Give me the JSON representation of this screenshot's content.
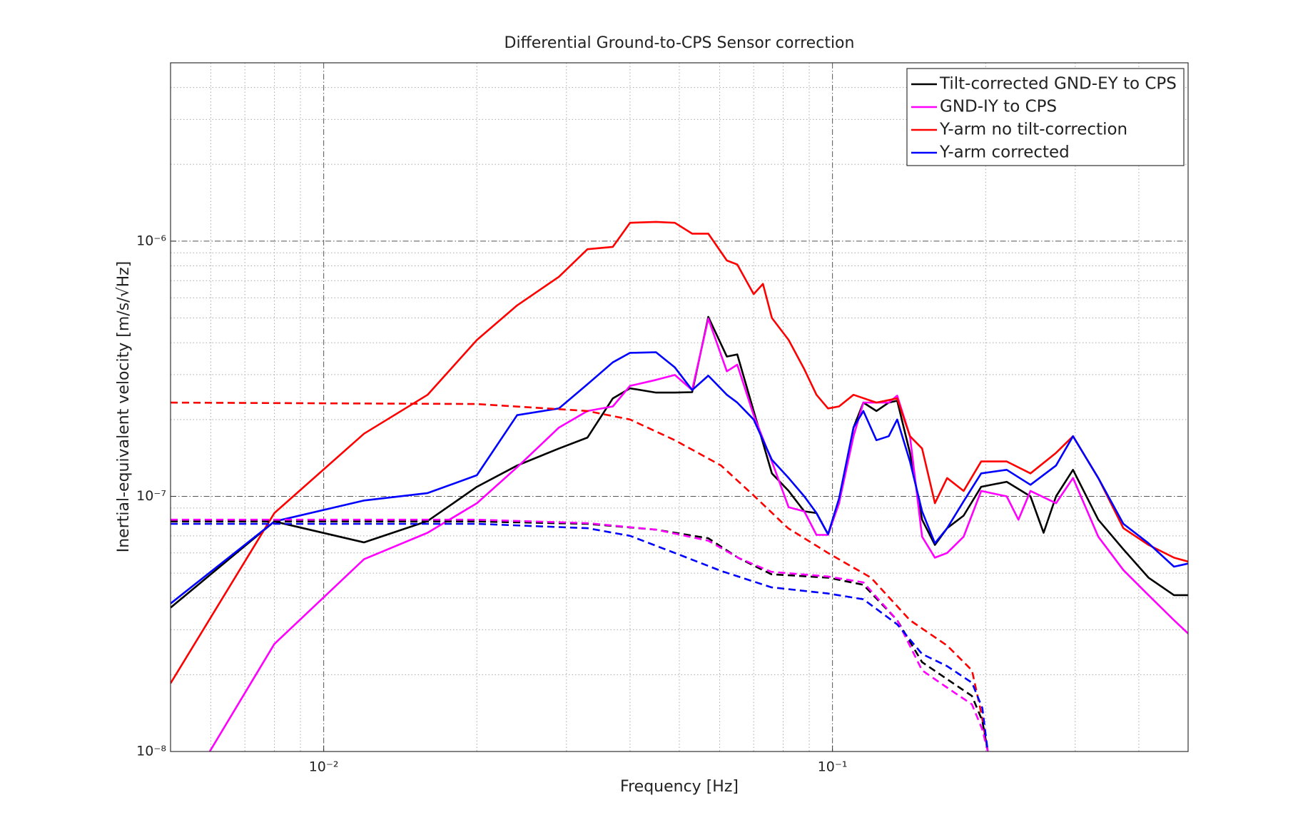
{
  "chart_data": {
    "type": "line",
    "title": "Differential Ground-to-CPS Sensor correction",
    "x_label": "Frequency [Hz]",
    "y_label": "Inertial-equivalent velocity [m/s/√Hz]",
    "xscale": "log",
    "yscale": "log",
    "grid": true,
    "legend": "upper right",
    "xlim": [
      0.005,
      0.5
    ],
    "ylim": [
      1e-08,
      5e-06
    ],
    "xticks": [
      {
        "value": 0.01,
        "label": "10⁻²"
      },
      {
        "value": 0.1,
        "label": "10⁻¹"
      }
    ],
    "yticks": [
      {
        "value": 1e-08,
        "label": "10⁻⁸"
      },
      {
        "value": 1e-07,
        "label": "10⁻⁷"
      },
      {
        "value": 1e-06,
        "label": "10⁻⁶"
      }
    ],
    "series": [
      {
        "name": "Tilt-corrected GND-EY to CPS",
        "color": "#000000",
        "linestyle": "solid",
        "x": [
          0.005,
          0.008,
          0.012,
          0.016,
          0.02,
          0.024,
          0.029,
          0.033,
          0.037,
          0.04,
          0.045,
          0.049,
          0.053,
          0.057,
          0.062,
          0.065,
          0.07,
          0.076,
          0.082,
          0.088,
          0.093,
          0.098,
          0.103,
          0.11,
          0.115,
          0.122,
          0.129,
          0.134,
          0.142,
          0.15,
          0.159,
          0.168,
          0.181,
          0.196,
          0.22,
          0.245,
          0.26,
          0.275,
          0.297,
          0.333,
          0.373,
          0.418,
          0.469,
          0.5
        ],
        "values": [
          3.66e-08,
          7.97e-08,
          6.6e-08,
          8e-08,
          1.09e-07,
          1.32e-07,
          1.54e-07,
          1.7e-07,
          2.42e-07,
          2.65e-07,
          2.55e-07,
          2.55e-07,
          2.56e-07,
          5.05e-07,
          3.53e-07,
          3.6e-07,
          2.16e-07,
          1.23e-07,
          1.05e-07,
          8.73e-08,
          8.6e-08,
          7.1e-08,
          9.4e-08,
          1.86e-07,
          2.33e-07,
          2.16e-07,
          2.33e-07,
          2.37e-07,
          1.48e-07,
          8.1e-08,
          6.45e-08,
          7.5e-08,
          8.4e-08,
          1.09e-07,
          1.14e-07,
          1e-07,
          7.2e-08,
          1e-07,
          1.27e-07,
          8.1e-08,
          6.2e-08,
          4.8e-08,
          4.1e-08,
          4.1e-08
        ]
      },
      {
        "name": "GND-IY to CPS",
        "color": "#ff00ff",
        "linestyle": "solid",
        "x": [
          0.00597,
          0.008,
          0.012,
          0.016,
          0.02,
          0.024,
          0.029,
          0.033,
          0.037,
          0.04,
          0.045,
          0.049,
          0.053,
          0.057,
          0.062,
          0.065,
          0.07,
          0.076,
          0.082,
          0.088,
          0.093,
          0.098,
          0.103,
          0.11,
          0.115,
          0.122,
          0.129,
          0.134,
          0.142,
          0.15,
          0.159,
          0.168,
          0.181,
          0.196,
          0.22,
          0.232,
          0.245,
          0.275,
          0.297,
          0.333,
          0.373,
          0.418,
          0.469,
          0.5
        ],
        "values": [
          1e-08,
          2.64e-08,
          5.67e-08,
          7.2e-08,
          9.4e-08,
          1.3e-07,
          1.86e-07,
          2.16e-07,
          2.25e-07,
          2.71e-07,
          2.86e-07,
          2.99e-07,
          2.61e-07,
          4.97e-07,
          3.09e-07,
          3.28e-07,
          2.08e-07,
          1.37e-07,
          9.06e-08,
          8.73e-08,
          7.06e-08,
          7.06e-08,
          9.4e-08,
          1.72e-07,
          2.33e-07,
          2.33e-07,
          2.33e-07,
          2.48e-07,
          1.72e-07,
          6.95e-08,
          5.75e-08,
          6e-08,
          6.95e-08,
          1.05e-07,
          1e-07,
          8.1e-08,
          1.05e-07,
          9.4e-08,
          1.18e-07,
          6.95e-08,
          5.14e-08,
          4.1e-08,
          3.27e-08,
          2.9e-08
        ]
      },
      {
        "name": "Y-arm no tilt-correction",
        "color": "#ff0000",
        "linestyle": "solid",
        "x": [
          0.005,
          0.008,
          0.012,
          0.016,
          0.02,
          0.024,
          0.029,
          0.033,
          0.037,
          0.04,
          0.045,
          0.049,
          0.053,
          0.057,
          0.062,
          0.065,
          0.07,
          0.073,
          0.076,
          0.082,
          0.088,
          0.093,
          0.098,
          0.103,
          0.11,
          0.122,
          0.134,
          0.142,
          0.15,
          0.159,
          0.168,
          0.181,
          0.196,
          0.22,
          0.245,
          0.275,
          0.297,
          0.333,
          0.373,
          0.418,
          0.469,
          0.5
        ],
        "values": [
          1.85e-08,
          8.6e-08,
          1.76e-07,
          2.5e-07,
          4.1e-07,
          5.6e-07,
          7.25e-07,
          9.3e-07,
          9.5e-07,
          1.18e-06,
          1.19e-06,
          1.18e-06,
          1.07e-06,
          1.07e-06,
          8.4e-07,
          8.1e-07,
          6.2e-07,
          6.8e-07,
          5e-07,
          4.1e-07,
          3.15e-07,
          2.5e-07,
          2.21e-07,
          2.25e-07,
          2.5e-07,
          2.33e-07,
          2.42e-07,
          1.72e-07,
          1.54e-07,
          9.4e-08,
          1.18e-07,
          1.05e-07,
          1.37e-07,
          1.37e-07,
          1.23e-07,
          1.48e-07,
          1.72e-07,
          1.18e-07,
          7.5e-08,
          6.45e-08,
          5.75e-08,
          5.55e-08
        ]
      },
      {
        "name": "Y-arm corrected",
        "color": "#0000ff",
        "linestyle": "solid",
        "x": [
          0.005,
          0.008,
          0.012,
          0.016,
          0.02,
          0.024,
          0.029,
          0.033,
          0.037,
          0.04,
          0.045,
          0.049,
          0.053,
          0.057,
          0.062,
          0.065,
          0.07,
          0.076,
          0.082,
          0.088,
          0.093,
          0.098,
          0.103,
          0.11,
          0.115,
          0.122,
          0.129,
          0.134,
          0.142,
          0.15,
          0.159,
          0.168,
          0.181,
          0.196,
          0.22,
          0.245,
          0.275,
          0.297,
          0.333,
          0.373,
          0.418,
          0.469,
          0.5
        ],
        "values": [
          3.8e-08,
          7.97e-08,
          9.63e-08,
          1.03e-07,
          1.21e-07,
          2.08e-07,
          2.21e-07,
          2.75e-07,
          3.35e-07,
          3.65e-07,
          3.67e-07,
          3.2e-07,
          2.61e-07,
          2.97e-07,
          2.5e-07,
          2.33e-07,
          2e-07,
          1.39e-07,
          1.18e-07,
          1e-07,
          8.6e-08,
          7.1e-08,
          9.8e-08,
          1.86e-07,
          2.16e-07,
          1.66e-07,
          1.72e-07,
          2e-07,
          1.37e-07,
          8.73e-08,
          6.55e-08,
          7.5e-08,
          9.56e-08,
          1.23e-07,
          1.27e-07,
          1.11e-07,
          1.32e-07,
          1.72e-07,
          1.18e-07,
          7.8e-08,
          6.55e-08,
          5.3e-08,
          5.45e-08
        ]
      },
      {
        "color": "#ff0000",
        "linestyle": "dashed",
        "x": [
          0.005,
          0.02,
          0.033,
          0.04,
          0.049,
          0.0604,
          0.0703,
          0.0818,
          0.098,
          0.119,
          0.142,
          0.168,
          0.188,
          0.196,
          0.202
        ],
        "values": [
          2.33e-07,
          2.3e-07,
          2.16e-07,
          2e-07,
          1.66e-07,
          1.32e-07,
          1e-07,
          7.5e-08,
          6e-08,
          4.8e-08,
          3.27e-08,
          2.6e-08,
          2.08e-08,
          1.42e-08,
          1e-08
        ]
      },
      {
        "color": "#000000",
        "linestyle": "dashed",
        "x": [
          0.005,
          0.02,
          0.033,
          0.045,
          0.057,
          0.0652,
          0.0758,
          0.098,
          0.115,
          0.134,
          0.15,
          0.168,
          0.188,
          0.197,
          0.202
        ],
        "values": [
          7.97e-08,
          7.97e-08,
          7.8e-08,
          7.4e-08,
          6.85e-08,
          5.75e-08,
          4.95e-08,
          4.8e-08,
          4.5e-08,
          3.27e-08,
          2.24e-08,
          1.92e-08,
          1.65e-08,
          1.32e-08,
          1e-08
        ]
      },
      {
        "color": "#ff00ff",
        "linestyle": "dashed",
        "x": [
          0.005,
          0.02,
          0.033,
          0.045,
          0.057,
          0.0652,
          0.0758,
          0.098,
          0.115,
          0.134,
          0.15,
          0.168,
          0.188,
          0.197,
          0.202
        ],
        "values": [
          8.1e-08,
          8.1e-08,
          7.85e-08,
          7.4e-08,
          6.7e-08,
          5.75e-08,
          5.06e-08,
          4.85e-08,
          4.6e-08,
          3.27e-08,
          2.08e-08,
          1.78e-08,
          1.53e-08,
          1.22e-08,
          1e-08
        ]
      },
      {
        "color": "#0000ff",
        "linestyle": "dashed",
        "x": [
          0.005,
          0.02,
          0.033,
          0.04,
          0.049,
          0.0604,
          0.0758,
          0.098,
          0.115,
          0.134,
          0.15,
          0.168,
          0.188,
          0.197,
          0.202
        ],
        "values": [
          7.8e-08,
          7.8e-08,
          7.5e-08,
          7e-08,
          6e-08,
          5.1e-08,
          4.4e-08,
          4.16e-08,
          3.95e-08,
          3.15e-08,
          2.41e-08,
          2.16e-08,
          1.86e-08,
          1.48e-08,
          1e-08
        ]
      }
    ]
  }
}
